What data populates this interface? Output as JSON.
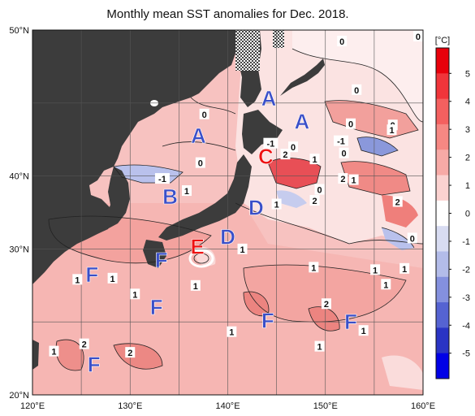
{
  "title": "Monthly mean SST anomalies for Dec. 2018.",
  "axes": {
    "x_ticks": [
      "120°E",
      "130°E",
      "140°E",
      "150°E",
      "160°E"
    ],
    "y_ticks": [
      "50°N",
      "40°N",
      "30°N",
      "20°N"
    ]
  },
  "colorbar": {
    "unit": "[°C]",
    "labels": [
      "5",
      "4",
      "3",
      "2",
      "1",
      "0",
      "-1",
      "-2",
      "-3",
      "-4",
      "-5"
    ],
    "colors": [
      "#e8000b",
      "#f0353a",
      "#f4605f",
      "#f68883",
      "#f7aaa6",
      "#fbd2d0",
      "#ffffff",
      "#d8dcf2",
      "#b3bce9",
      "#8490de",
      "#5563d2",
      "#2a34c4",
      "#0000e6"
    ]
  },
  "colors": {
    "land": "#3c3c3c",
    "sea_warm": "#f6b8b5",
    "sea_warmer": "#ef8c88",
    "sea_hot": "#e8505a",
    "sea_neutral": "#fbe2e1",
    "sea_cool": "#c6ccee",
    "sea_cold": "#7f8ed8",
    "region_blue": "#3a4fc8",
    "region_red": "#ee1111"
  },
  "regions": [
    {
      "code": "A",
      "color": "blue",
      "lon": 144.2,
      "lat": 44.4
    },
    {
      "code": "A",
      "color": "blue",
      "lon": 147.6,
      "lat": 42.5
    },
    {
      "code": "A",
      "color": "blue",
      "lon": 137.0,
      "lat": 41.3
    },
    {
      "code": "B",
      "color": "blue",
      "lon": 134.1,
      "lat": 36.3
    },
    {
      "code": "C",
      "color": "red",
      "lon": 143.9,
      "lat": 39.6
    },
    {
      "code": "D",
      "color": "blue",
      "lon": 142.9,
      "lat": 35.4
    },
    {
      "code": "D",
      "color": "blue",
      "lon": 140.0,
      "lat": 33.0
    },
    {
      "code": "E",
      "color": "red",
      "lon": 136.9,
      "lat": 32.2
    },
    {
      "code": "F",
      "color": "blue",
      "lon": 133.2,
      "lat": 31.1
    },
    {
      "code": "F",
      "color": "blue",
      "lon": 126.1,
      "lat": 29.9
    },
    {
      "code": "F",
      "color": "blue",
      "lon": 132.7,
      "lat": 27.2
    },
    {
      "code": "F",
      "color": "blue",
      "lon": 144.1,
      "lat": 26.1
    },
    {
      "code": "F",
      "color": "blue",
      "lon": 152.6,
      "lat": 26.0
    },
    {
      "code": "F",
      "color": "blue",
      "lon": 126.3,
      "lat": 22.5
    }
  ],
  "contour_labels": [
    {
      "text": "0",
      "lon": 151.7,
      "lat": 49.0
    },
    {
      "text": "0",
      "lon": 159.5,
      "lat": 49.4
    },
    {
      "text": "0",
      "lon": 153.2,
      "lat": 45.0
    },
    {
      "text": "0",
      "lon": 137.6,
      "lat": 43.0
    },
    {
      "text": "0",
      "lon": 152.6,
      "lat": 42.2
    },
    {
      "text": "0",
      "lon": 156.9,
      "lat": 42.1
    },
    {
      "text": "1",
      "lon": 156.8,
      "lat": 41.7
    },
    {
      "text": "-1",
      "lon": 151.6,
      "lat": 40.8
    },
    {
      "text": "-1",
      "lon": 144.4,
      "lat": 40.6
    },
    {
      "text": "0",
      "lon": 146.7,
      "lat": 40.3
    },
    {
      "text": "2",
      "lon": 145.9,
      "lat": 39.7
    },
    {
      "text": "0",
      "lon": 151.9,
      "lat": 39.8
    },
    {
      "text": "1",
      "lon": 148.9,
      "lat": 39.3
    },
    {
      "text": "0",
      "lon": 137.2,
      "lat": 39.0
    },
    {
      "text": "-1",
      "lon": 133.3,
      "lat": 37.7
    },
    {
      "text": "1",
      "lon": 152.9,
      "lat": 37.6
    },
    {
      "text": "2",
      "lon": 151.8,
      "lat": 37.7
    },
    {
      "text": "1",
      "lon": 135.8,
      "lat": 36.7
    },
    {
      "text": "0",
      "lon": 149.4,
      "lat": 36.8
    },
    {
      "text": "2",
      "lon": 148.9,
      "lat": 35.9
    },
    {
      "text": "1",
      "lon": 145.0,
      "lat": 35.6
    },
    {
      "text": "2",
      "lon": 157.4,
      "lat": 35.8
    },
    {
      "text": "0",
      "lon": 158.9,
      "lat": 32.8
    },
    {
      "text": "1",
      "lon": 141.5,
      "lat": 31.9
    },
    {
      "text": "1",
      "lon": 148.8,
      "lat": 30.4
    },
    {
      "text": "1",
      "lon": 155.1,
      "lat": 30.2
    },
    {
      "text": "1",
      "lon": 158.1,
      "lat": 30.3
    },
    {
      "text": "1",
      "lon": 124.6,
      "lat": 29.4
    },
    {
      "text": "1",
      "lon": 128.2,
      "lat": 29.5
    },
    {
      "text": "1",
      "lon": 156.2,
      "lat": 29.0
    },
    {
      "text": "1",
      "lon": 136.7,
      "lat": 28.9
    },
    {
      "text": "1",
      "lon": 130.5,
      "lat": 28.2
    },
    {
      "text": "2",
      "lon": 150.1,
      "lat": 27.4
    },
    {
      "text": "1",
      "lon": 140.4,
      "lat": 25.1
    },
    {
      "text": "1",
      "lon": 153.9,
      "lat": 25.2
    },
    {
      "text": "2",
      "lon": 125.3,
      "lat": 24.1
    },
    {
      "text": "1",
      "lon": 149.4,
      "lat": 23.9
    },
    {
      "text": "1",
      "lon": 122.2,
      "lat": 23.5
    },
    {
      "text": "2",
      "lon": 130.0,
      "lat": 23.4
    }
  ]
}
